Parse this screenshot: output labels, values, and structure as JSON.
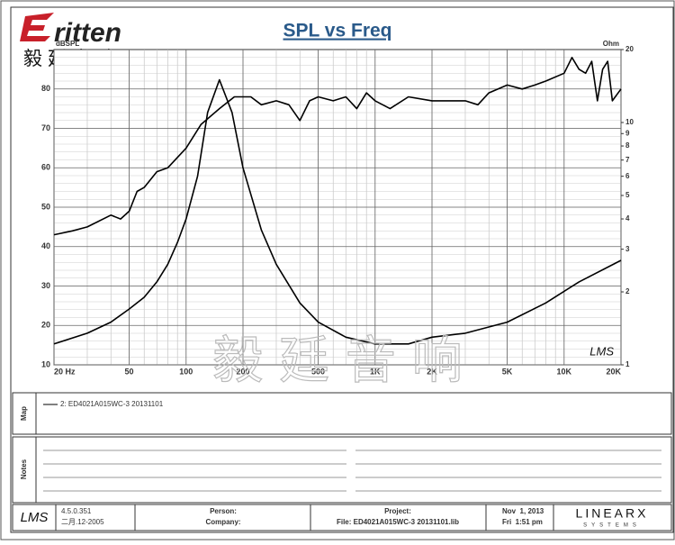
{
  "brand": {
    "logo": "ritten",
    "name_cn": "毅廷音响",
    "watermark": "毅 廷 音 响"
  },
  "chart_data": {
    "type": "line",
    "title": "SPL vs Freq",
    "y_label": "dBSPL",
    "y2_label": "Ohm",
    "corner_mark": "LMS",
    "xscale": "log",
    "xlim": [
      20,
      20000
    ],
    "xticks": [
      {
        "value": 20,
        "label": "20 Hz"
      },
      50,
      100,
      200,
      500,
      {
        "value": 1000,
        "label": "1K"
      },
      {
        "value": 2000,
        "label": "2K"
      },
      {
        "value": 5000,
        "label": "5K"
      },
      {
        "value": 10000,
        "label": "10K"
      },
      {
        "value": 20000,
        "label": "20K"
      }
    ],
    "ylim": [
      10,
      90
    ],
    "yticks": [
      10,
      20,
      30,
      40,
      50,
      60,
      70,
      80
    ],
    "y2scale": "log",
    "y2lim": [
      1,
      20
    ],
    "y2ticks": [
      1,
      2,
      3,
      4,
      5,
      6,
      7,
      8,
      9,
      10,
      20
    ],
    "grid": true,
    "minor_grid": true,
    "series": [
      {
        "color": "#000000",
        "x": [
          20,
          25,
          30,
          40,
          45,
          50,
          55,
          60,
          70,
          80,
          100,
          120,
          150,
          180,
          220,
          250,
          300,
          350,
          400,
          450,
          500,
          600,
          700,
          800,
          900,
          1000,
          1200,
          1500,
          2000,
          3000,
          3500,
          4000,
          5000,
          6000,
          7000,
          8000,
          10000,
          11000,
          12000,
          13000,
          14000,
          15000,
          16000,
          17000,
          18000,
          20000
        ],
        "values": [
          43,
          44,
          45,
          48,
          47,
          49,
          54,
          55,
          59,
          60,
          65,
          71,
          75,
          78,
          78,
          76,
          77,
          76,
          72,
          77,
          78,
          77,
          78,
          75,
          79,
          77,
          75,
          78,
          77,
          77,
          76,
          79,
          81,
          80,
          81,
          82,
          84,
          88,
          85,
          84,
          87,
          77,
          85,
          87,
          77,
          80
        ]
      },
      {
        "color": "#000000",
        "axis": "y2",
        "x": [
          20,
          30,
          40,
          50,
          60,
          70,
          80,
          90,
          100,
          115,
          130,
          150,
          175,
          200,
          250,
          300,
          400,
          500,
          700,
          1000,
          1500,
          2000,
          3000,
          5000,
          8000,
          12000,
          20000
        ],
        "values": [
          1.22,
          1.35,
          1.5,
          1.7,
          1.9,
          2.2,
          2.6,
          3.2,
          4,
          6,
          11,
          15,
          11,
          6.5,
          3.6,
          2.6,
          1.8,
          1.5,
          1.3,
          1.22,
          1.22,
          1.3,
          1.35,
          1.5,
          1.8,
          2.2,
          2.7
        ]
      }
    ]
  },
  "map": {
    "label": "Map",
    "legend": "2: ED4021A015WC-3   20131101"
  },
  "notes": {
    "label": "Notes"
  },
  "footer": {
    "logo": "LMS",
    "version": "4.5.0.351",
    "date": "二月.12-2005",
    "person": "Person:",
    "company": "Company:",
    "project": "Project:",
    "file": "File: ED4021A015WC-3 20131101.lib",
    "day": "Nov  1, 2013",
    "time": "Fri  1:51 pm",
    "brand": "LINEARX",
    "brand_sub": "SYSTEMS"
  }
}
